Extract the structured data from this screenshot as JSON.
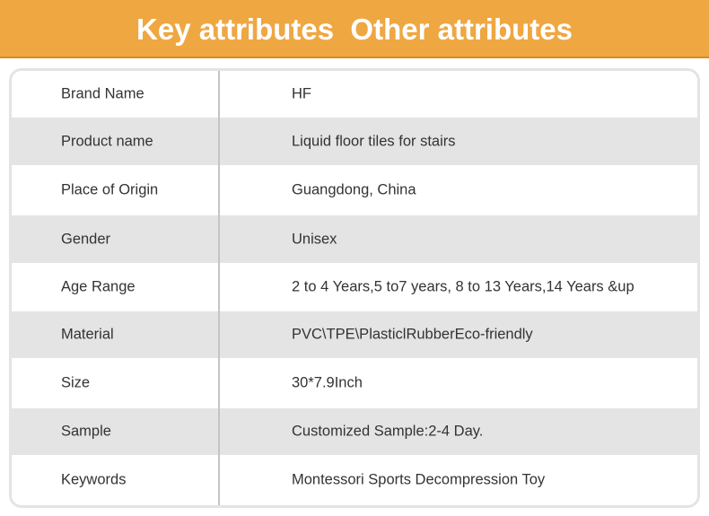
{
  "header": {
    "title": "Key attributes  Other attributes",
    "color": "#EFA742"
  },
  "rows": [
    {
      "label": "Brand Name",
      "value": "HF"
    },
    {
      "label": "Product name",
      "value": "Liquid floor tiles for stairs"
    },
    {
      "label": "Place of Origin",
      "value": "Guangdong, China"
    },
    {
      "label": "Gender",
      "value": "Unisex"
    },
    {
      "label": "Age Range",
      "value": "2 to 4 Years,5 to7 years, 8 to 13 Years,14 Years &up"
    },
    {
      "label": "Material",
      "value": "PVC\\TPE\\PlasticlRubberEco-friendly"
    },
    {
      "label": "Size",
      "value": "30*7.9Inch"
    },
    {
      "label": "Sample",
      "value": "Customized Sample:2-4 Day."
    },
    {
      "label": "Keywords",
      "value": "Montessori Sports Decompression Toy"
    }
  ]
}
